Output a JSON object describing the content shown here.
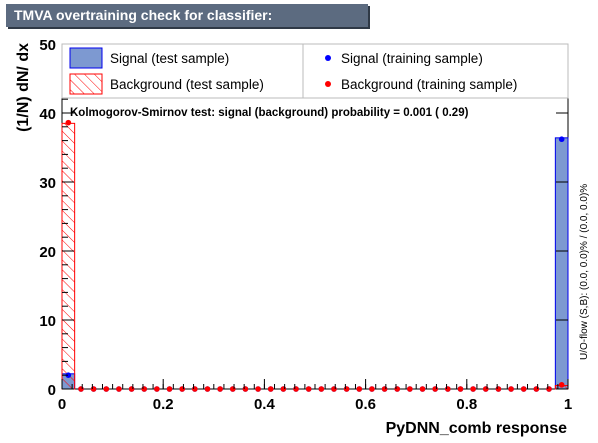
{
  "title": "TMVA overtraining check for classifier: PyDNN_comb",
  "colors": {
    "title_bg": "#5c6b80",
    "signal_fill": "#7d99d1",
    "signal_line": "#0000ee",
    "background_line": "#ff0000",
    "signal_marker": "#0000ff",
    "background_marker": "#ff0000"
  },
  "chart_data": {
    "type": "bar",
    "xlabel": "PyDNN_comb response",
    "ylabel": "(1/N) dN/ dx",
    "xlim": [
      0,
      1
    ],
    "ylim": [
      0,
      50
    ],
    "x_ticks": [
      "0",
      "0.2",
      "0.4",
      "0.6",
      "0.8",
      "1"
    ],
    "y_ticks": [
      "0",
      "10",
      "20",
      "30",
      "40",
      "50"
    ],
    "legend": {
      "signal_test": "Signal (test sample)",
      "background_test": "Background (test sample)",
      "signal_train": "Signal (training sample)",
      "background_train": "Background (training sample)"
    },
    "ks_text": "Kolmogorov-Smirnov test: signal (background) probability = 0.001 ( 0.29)",
    "overflow_text": "U/O-flow (S,B): (0.0, 0.0)% / (0.0, 0.0)%",
    "n_bins": 40,
    "series": [
      {
        "name": "Signal (test sample)",
        "style": "filled",
        "bins": [
          {
            "bin": 0,
            "value": 2.2
          },
          {
            "bin": 39,
            "value": 36.4
          }
        ]
      },
      {
        "name": "Background (test sample)",
        "style": "hatched",
        "bins": [
          {
            "bin": 0,
            "value": 38.5
          },
          {
            "bin": 39,
            "value": 0.5
          }
        ]
      },
      {
        "name": "Signal (training sample)",
        "style": "marker",
        "bins": [
          {
            "bin": 0,
            "value": 2.0
          },
          {
            "bin": 39,
            "value": 36.2
          }
        ]
      },
      {
        "name": "Background (training sample)",
        "style": "marker",
        "bins": [
          {
            "bin": 0,
            "value": 38.6
          },
          {
            "bin": 39,
            "value": 0.6
          }
        ]
      }
    ]
  }
}
